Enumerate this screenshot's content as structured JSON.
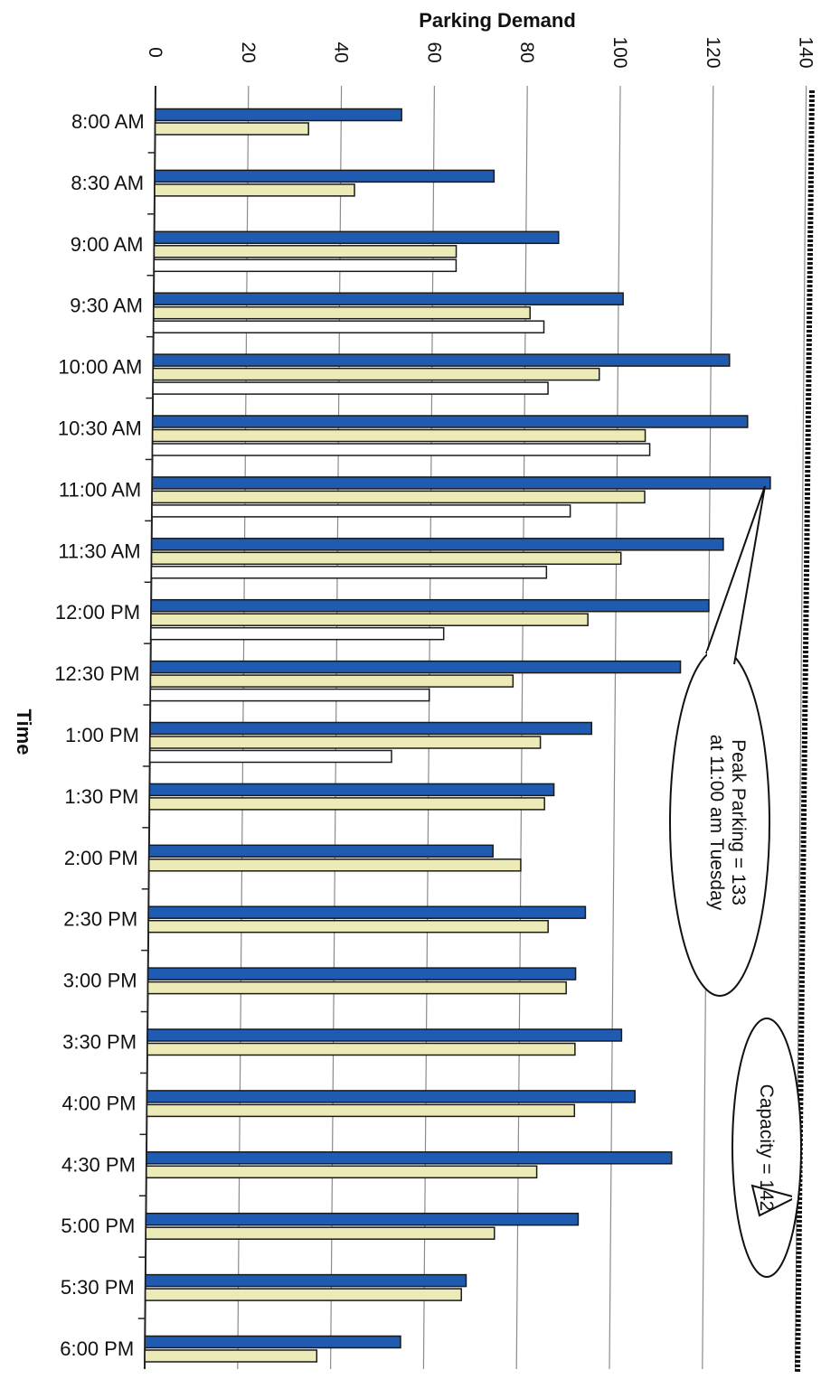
{
  "chart_data": {
    "type": "bar",
    "orientation": "horizontal",
    "title": "",
    "xlabel": "Parking Demand",
    "ylabel": "Time",
    "xlim": [
      0,
      140
    ],
    "x_ticks": [
      "0",
      "20",
      "40",
      "60",
      "80",
      "100",
      "120",
      "140"
    ],
    "grid": true,
    "categories": [
      "8:00 AM",
      "8:30 AM",
      "9:00 AM",
      "9:30 AM",
      "10:00 AM",
      "10:30 AM",
      "11:00 AM",
      "11:30 AM",
      "12:00 PM",
      "12:30 PM",
      "1:00 PM",
      "1:30 PM",
      "2:00 PM",
      "2:30 PM",
      "3:00 PM",
      "3:30 PM",
      "4:00 PM",
      "4:30 PM",
      "5:00 PM",
      "5:30 PM",
      "6:00 PM"
    ],
    "series": [
      {
        "color": "#1f5bb0",
        "values": [
          53,
          73,
          87,
          101,
          124,
          128,
          133,
          123,
          120,
          114,
          95,
          87,
          74,
          94,
          92,
          102,
          105,
          113,
          93,
          69,
          55
        ]
      },
      {
        "color": "#ecebb8",
        "values": [
          33,
          43,
          65,
          81,
          96,
          106,
          106,
          101,
          94,
          78,
          84,
          85,
          80,
          86,
          90,
          92,
          92,
          84,
          75,
          68,
          37
        ]
      },
      {
        "color": "#ffffff",
        "values": [
          null,
          null,
          65,
          84,
          85,
          107,
          90,
          85,
          63,
          60,
          52,
          null,
          null,
          null,
          null,
          null,
          null,
          null,
          null,
          null,
          null
        ]
      }
    ],
    "reference_line": {
      "value": 142,
      "style": "dotted"
    },
    "annotations": [
      {
        "line1": "Peak Parking = 133",
        "line2": "at 11:00 am Tuesday"
      },
      {
        "line1": "Capacity = 142"
      }
    ]
  }
}
